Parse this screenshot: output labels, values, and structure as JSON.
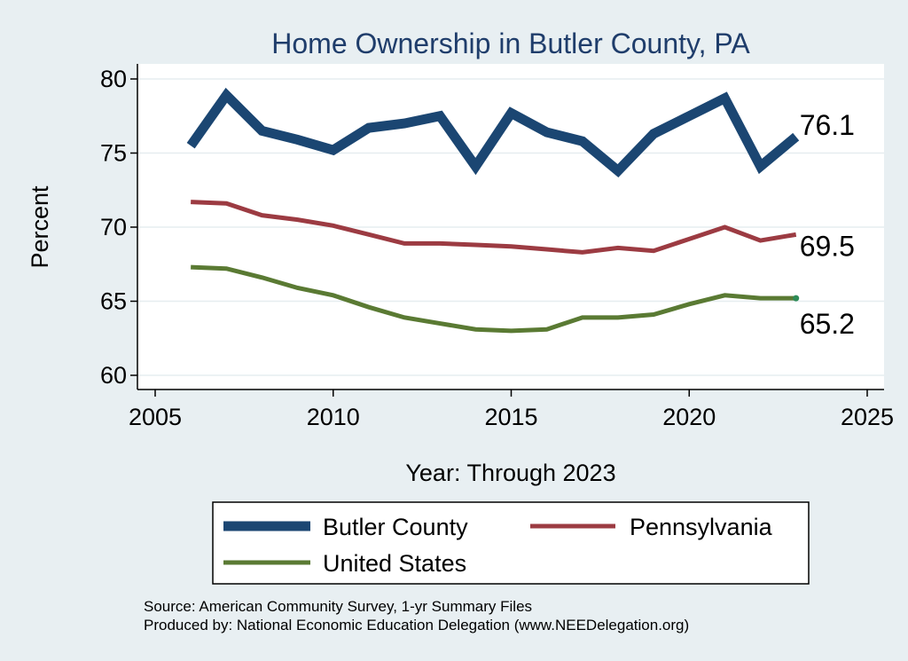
{
  "chart_data": {
    "type": "line",
    "title": "Home Ownership in Butler County, PA",
    "xlabel": "Year: Through 2023",
    "ylabel": "Percent",
    "xlim": [
      2005,
      2025
    ],
    "ylim": [
      60,
      80
    ],
    "xticks": [
      "2005",
      "2010",
      "2015",
      "2020",
      "2025"
    ],
    "yticks": [
      "60",
      "65",
      "70",
      "75",
      "80"
    ],
    "x": [
      2006,
      2007,
      2008,
      2009,
      2010,
      2011,
      2012,
      2013,
      2014,
      2015,
      2016,
      2017,
      2018,
      2019,
      2020,
      2021,
      2022,
      2023
    ],
    "series": [
      {
        "name": "Butler County",
        "color": "#1b4672",
        "values": [
          75.5,
          78.9,
          76.5,
          75.9,
          75.2,
          76.7,
          77.0,
          77.5,
          74.1,
          77.7,
          76.4,
          75.8,
          73.8,
          76.3,
          77.5,
          78.7,
          74.1,
          76.1
        ],
        "end_label": "76.1"
      },
      {
        "name": "Pennsylvania",
        "color": "#9c3b42",
        "values": [
          71.7,
          71.6,
          70.8,
          70.5,
          70.1,
          69.5,
          68.9,
          68.9,
          68.8,
          68.7,
          68.5,
          68.3,
          68.6,
          68.4,
          69.2,
          70.0,
          69.1,
          69.5
        ],
        "end_label": "69.5"
      },
      {
        "name": "United States",
        "color": "#5a7a33",
        "values": [
          67.3,
          67.2,
          66.6,
          65.9,
          65.4,
          64.6,
          63.9,
          63.5,
          63.1,
          63.0,
          63.1,
          63.9,
          63.9,
          64.1,
          64.8,
          65.4,
          65.2,
          65.2
        ],
        "end_label": "65.2"
      }
    ],
    "legend": {
      "placement": "bottom",
      "entries": [
        "Butler County",
        "Pennsylvania",
        "United States"
      ]
    },
    "grid": true
  },
  "notes": {
    "source": "Source: American Community Survey, 1-yr Summary Files",
    "produced_by": "Produced by: National Economic Education Delegation (www.NEEDelegation.org)"
  },
  "colors": {
    "background": "#e8eff2",
    "plot_background": "#ffffff",
    "title": "#1f3d6b",
    "end_marker": "#2e8b57"
  }
}
